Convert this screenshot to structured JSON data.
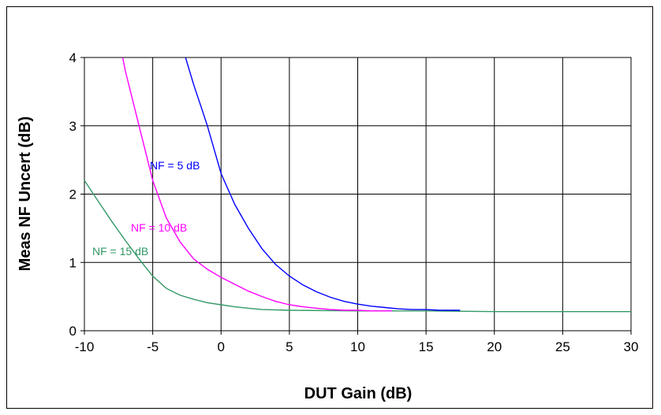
{
  "chart_data": {
    "type": "line",
    "title": "",
    "xlabel": "DUT Gain (dB)",
    "ylabel": "Meas NF Uncert (dB)",
    "xlim": [
      -10,
      30
    ],
    "ylim": [
      0,
      4
    ],
    "x_ticks": [
      "-10",
      "-5",
      "0",
      "5",
      "10",
      "15",
      "20",
      "25",
      "30"
    ],
    "y_ticks": [
      "0",
      "1",
      "2",
      "3",
      "4"
    ],
    "grid": true,
    "series": [
      {
        "name": "NF = 5 dB",
        "color": "#0000ff",
        "x": [
          -2.6,
          -2,
          -1.5,
          -1,
          -0.5,
          0,
          1,
          2,
          3,
          4,
          5,
          6,
          7,
          8,
          9,
          10,
          11,
          12,
          13,
          14,
          15,
          16,
          17.5
        ],
        "y": [
          4.0,
          3.6,
          3.3,
          3.0,
          2.65,
          2.3,
          1.85,
          1.5,
          1.2,
          0.97,
          0.8,
          0.67,
          0.57,
          0.49,
          0.43,
          0.39,
          0.36,
          0.34,
          0.32,
          0.31,
          0.31,
          0.3,
          0.3
        ]
      },
      {
        "name": "NF = 10 dB",
        "color": "#ff00ff",
        "x": [
          -7.2,
          -7,
          -6,
          -5,
          -4,
          -3,
          -2,
          -1,
          0,
          1,
          2,
          3,
          4,
          5,
          6,
          7,
          8,
          9,
          10,
          11,
          12.5
        ],
        "y": [
          4.0,
          3.8,
          3.0,
          2.2,
          1.65,
          1.3,
          1.05,
          0.9,
          0.78,
          0.68,
          0.58,
          0.5,
          0.43,
          0.38,
          0.35,
          0.33,
          0.31,
          0.3,
          0.3,
          0.29,
          0.29
        ]
      },
      {
        "name": "NF = 15 dB",
        "color": "#339966",
        "x": [
          -10,
          -9,
          -8,
          -7,
          -6,
          -5,
          -4,
          -3,
          -2,
          -1,
          0,
          1,
          2,
          3,
          5,
          10,
          15,
          20,
          25,
          30
        ],
        "y": [
          2.2,
          1.9,
          1.6,
          1.32,
          1.05,
          0.8,
          0.62,
          0.52,
          0.46,
          0.41,
          0.38,
          0.35,
          0.33,
          0.31,
          0.3,
          0.29,
          0.29,
          0.28,
          0.28,
          0.28
        ]
      }
    ]
  }
}
